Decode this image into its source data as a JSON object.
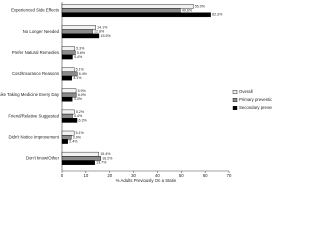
{
  "chart_data": {
    "type": "grouped-hbar",
    "x_label": "% Adults Previously On a Statin",
    "categories": [
      "Experienced Side Effects",
      "No Longer Needed",
      "Prefer Natural Remedies",
      "Cost/Insurance Reasons",
      "Didn't Like Taking Medicine Every Day",
      "Friend/Relative Suggested",
      "Didn't Notice Improvement",
      "Don't know/Other"
    ],
    "series": [
      {
        "name": "Overall",
        "color": "#f2f2f2",
        "values": [
          55.0,
          14.1,
          5.3,
          5.1,
          5.9,
          5.2,
          5.1,
          15.4
        ],
        "value_labels": [
          "55.0%",
          "14.1%",
          "5.3%",
          "5.1%",
          "5.9%",
          "5.2%",
          "5.1%",
          "15.4%"
        ]
      },
      {
        "name": "Primary prevention",
        "color": "#8c8c8c",
        "values": [
          49.6,
          12.8,
          5.6,
          6.4,
          6.0,
          4.4,
          3.9,
          16.2
        ],
        "value_labels": [
          "49.6%",
          "12.8%",
          "5.6%",
          "6.4%",
          "6.0%",
          "4.4%",
          "3.9%",
          "16.2%"
        ]
      },
      {
        "name": "Secondary prevention",
        "color": "#000000",
        "values": [
          62.3,
          15.5,
          4.4,
          4.1,
          4.3,
          6.3,
          2.4,
          13.7
        ],
        "value_labels": [
          "62.3%",
          "15.5%",
          "4.4%",
          "4.1%",
          "4.3%",
          "6.3%",
          "2.4%",
          "13.7%"
        ]
      }
    ],
    "xlim": [
      0,
      70
    ],
    "xticks": [
      0,
      10,
      20,
      30,
      40,
      50,
      60,
      70
    ]
  }
}
